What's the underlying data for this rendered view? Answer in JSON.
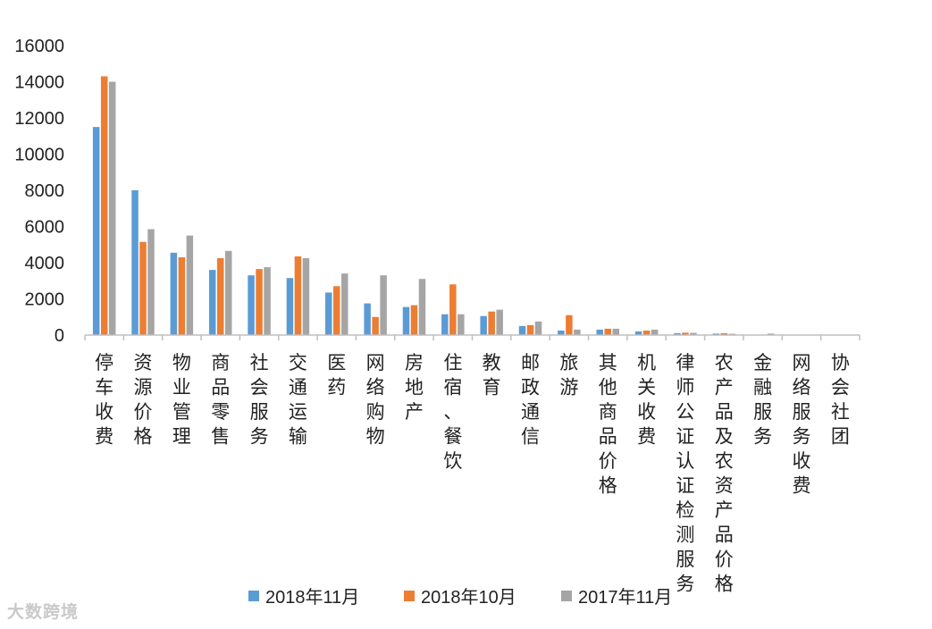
{
  "chart_data": {
    "type": "bar",
    "categories": [
      "停车收费",
      "资源价格",
      "物业管理",
      "商品零售",
      "社会服务",
      "交通运输",
      "医药",
      "网络购物",
      "房地产",
      "住宿、餐饮",
      "教育",
      "邮政通信",
      "旅游",
      "其他商品价格",
      "机关收费",
      "律师公证认证检测服务",
      "农产品及农资产品价格",
      "金融服务",
      "网络服务收费",
      "协会社团"
    ],
    "series": [
      {
        "name": "2018年11月",
        "color": "#5b9bd5",
        "values": [
          11500,
          8000,
          4550,
          3600,
          3300,
          3150,
          2350,
          1750,
          1550,
          1150,
          1050,
          500,
          250,
          300,
          200,
          100,
          80,
          20,
          10,
          0
        ]
      },
      {
        "name": "2018年10月",
        "color": "#ed7d31",
        "values": [
          14300,
          5150,
          4300,
          4250,
          3650,
          4350,
          2700,
          1000,
          1650,
          2800,
          1300,
          550,
          1100,
          350,
          250,
          130,
          100,
          10,
          0,
          0
        ]
      },
      {
        "name": "2017年11月",
        "color": "#a5a5a5",
        "values": [
          14000,
          5850,
          5500,
          4650,
          3750,
          4250,
          3400,
          3300,
          3100,
          1150,
          1400,
          750,
          300,
          350,
          300,
          120,
          70,
          80,
          10,
          0
        ]
      }
    ],
    "ylim": [
      0,
      16000
    ],
    "yticks": [
      0,
      2000,
      4000,
      6000,
      8000,
      10000,
      12000,
      14000,
      16000
    ],
    "legend_position": "bottom",
    "grid": false
  },
  "watermark": "大数跨境"
}
